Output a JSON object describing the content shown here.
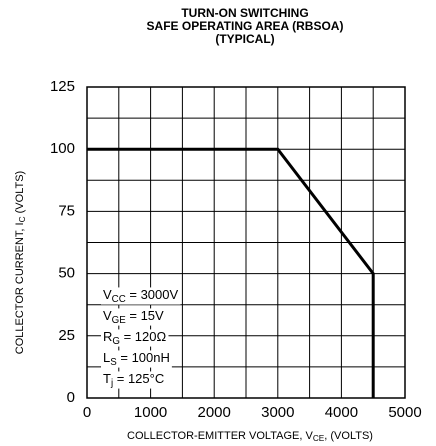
{
  "chart_data": {
    "type": "line",
    "title": [
      "TURN-ON SWITCHING",
      "SAFE OPERATING AREA (RBSOA)",
      "(TYPICAL)"
    ],
    "x_label": [
      "COLLECTOR-EMITTER VOLTAGE, V",
      "CE",
      ", (VOLTS)"
    ],
    "y_label": [
      "COLLECTOR CURRENT, I",
      "C",
      " (VOLTS)"
    ],
    "x": [
      0,
      3000,
      4500,
      4500
    ],
    "series": [
      {
        "color": "#000000",
        "values": [
          100,
          100,
          50,
          0
        ]
      }
    ],
    "xlim": [
      0,
      5000
    ],
    "ylim": [
      0,
      125
    ],
    "xticks": [
      0,
      1000,
      2000,
      3000,
      4000,
      5000
    ],
    "yticks": [
      0,
      25,
      50,
      75,
      100,
      125
    ],
    "x_minor_ticks": [
      500,
      1500,
      2500,
      3500,
      4500
    ],
    "y_minor_ticks": [
      12.5,
      37.5,
      62.5,
      87.5,
      112.5
    ],
    "grid": true,
    "annotations": [
      [
        "V",
        "CC",
        " = 3000V"
      ],
      [
        "V",
        "GE",
        " = 15V"
      ],
      [
        "R",
        "G",
        " = 120Ω"
      ],
      [
        "L",
        "S",
        " = 100nH"
      ],
      [
        "T",
        "j",
        " = 125°C"
      ]
    ]
  }
}
